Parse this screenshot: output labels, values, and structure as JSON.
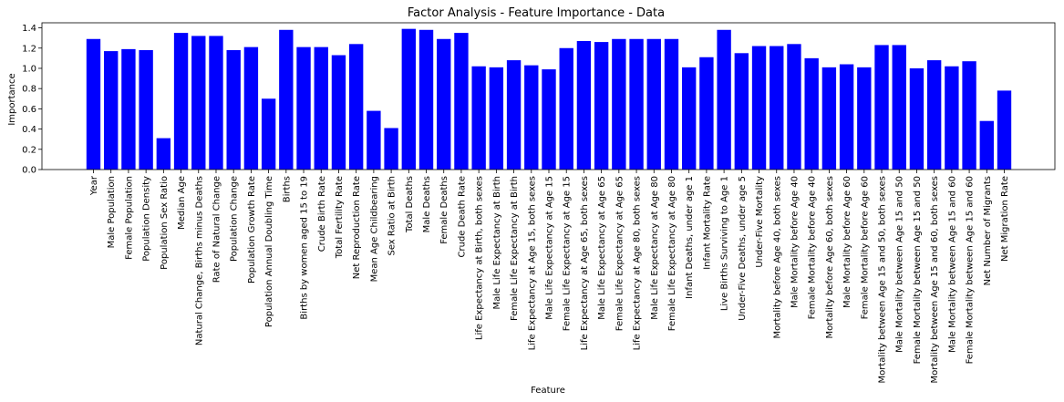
{
  "chart_data": {
    "type": "bar",
    "title": "Factor Analysis - Feature Importance - Data",
    "xlabel": "Feature",
    "ylabel": "Importance",
    "ylim": [
      0,
      1.45
    ],
    "yticks": [
      "0.0",
      "0.2",
      "0.4",
      "0.6",
      "0.8",
      "1.0",
      "1.2",
      "1.4"
    ],
    "grid": false,
    "bar_color": "#0000ff",
    "categories": [
      "Year",
      "Male Population",
      "Female Population",
      "Population Density",
      "Population Sex Ratio",
      "Median Age",
      "Natural Change, Births minus Deaths",
      "Rate of Natural Change",
      "Population Change",
      "Population Growth Rate",
      "Population Annual Doubling Time",
      "Births",
      "Births by women aged 15 to 19",
      "Crude Birth Rate",
      "Total Fertility Rate",
      "Net Reproduction Rate",
      "Mean Age Childbearing",
      "Sex Ratio at Birth",
      "Total Deaths",
      "Male Deaths",
      "Female Deaths",
      "Crude Death Rate",
      "Life Expectancy at Birth, both sexes",
      "Male Life Expectancy at Birth",
      "Female Life Expectancy at Birth",
      "Life Expectancy at Age 15, both sexes",
      "Male Life Expectancy at Age 15",
      "Female Life Expectancy at Age 15",
      "Life Expectancy at Age 65, both sexes",
      "Male Life Expectancy at Age 65",
      "Female Life Expectancy at Age 65",
      "Life Expectancy at Age 80, both sexes",
      "Male Life Expectancy at Age 80",
      "Female Life Expectancy at Age 80",
      "Infant Deaths, under age 1",
      "Infant Mortality Rate",
      "Live Births Surviving to Age 1",
      "Under-Five Deaths, under age 5",
      "Under-Five Mortality",
      "Mortality before Age 40, both sexes",
      "Male Mortality before Age 40",
      "Female Mortality before Age 40",
      "Mortality before Age 60, both sexes",
      "Male Mortality before Age 60",
      "Female Mortality before Age 60",
      "Mortality between Age 15 and 50, both sexes",
      "Male Mortality between Age 15 and 50",
      "Female Mortality between Age 15 and 50",
      "Mortality between Age 15 and 60, both sexes",
      "Male Mortality between Age 15 and 60",
      "Female Mortality between Age 15 and 60",
      "Net Number of Migrants",
      "Net Migration Rate"
    ],
    "values": [
      1.29,
      1.17,
      1.19,
      1.18,
      0.31,
      1.35,
      1.32,
      1.32,
      1.18,
      1.21,
      0.7,
      1.38,
      1.21,
      1.21,
      1.13,
      1.24,
      0.58,
      0.41,
      1.39,
      1.38,
      1.29,
      1.35,
      1.02,
      1.01,
      1.08,
      1.03,
      0.99,
      1.2,
      1.27,
      1.26,
      1.29,
      1.29,
      1.29,
      1.29,
      1.01,
      1.11,
      1.38,
      1.15,
      1.22,
      1.22,
      1.24,
      1.1,
      1.01,
      1.04,
      1.01,
      1.23,
      1.23,
      1.0,
      1.08,
      1.02,
      1.07,
      0.48,
      0.78
    ]
  }
}
